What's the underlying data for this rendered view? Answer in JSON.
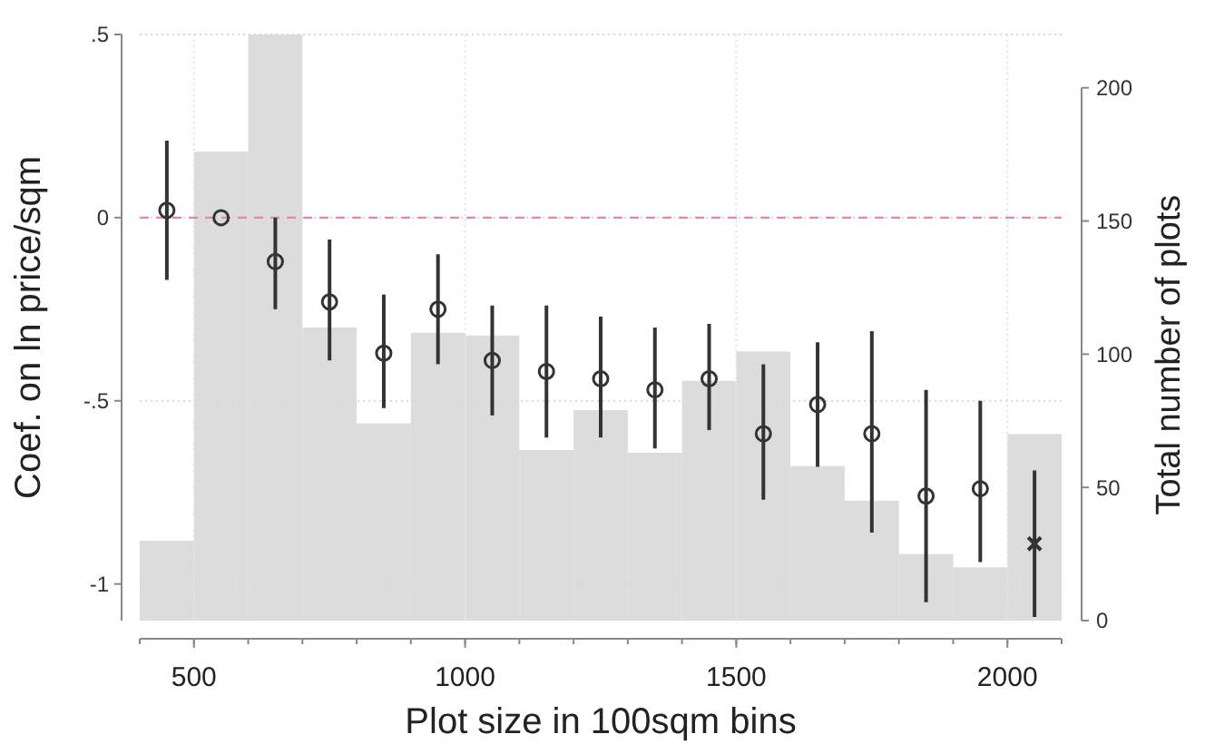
{
  "chart_data": {
    "type": "scatter",
    "xlabel": "Plot size in 100sqm bins",
    "ylabel": "Coef. on ln price/sqm",
    "y2label": "Total number of plots",
    "xlim": [
      400,
      2100
    ],
    "xticks": [
      500,
      1000,
      1500,
      2000
    ],
    "ylim": [
      -1.1,
      0.5
    ],
    "yticks": [
      {
        "value": 0.5,
        "label": ".5"
      },
      0,
      {
        "value": -0.5,
        "label": "-.5"
      },
      -1
    ],
    "y2lim": [
      0,
      220
    ],
    "y2ticks": [
      0,
      50,
      100,
      150,
      200
    ],
    "grid": true,
    "ref_lines": [
      {
        "axis": "y",
        "value": 0,
        "color": "#e08aa8",
        "line_style": "dashed"
      }
    ],
    "series": [
      {
        "type": "histogram",
        "axis": "y2",
        "color": "#dcdcdc",
        "bins": [
          400,
          500,
          600,
          700,
          800,
          900,
          1000,
          1100,
          1200,
          1300,
          1400,
          1500,
          1600,
          1700,
          1800,
          1900,
          2000,
          2100
        ],
        "values": [
          30,
          176,
          220,
          110,
          74,
          108,
          107,
          64,
          79,
          63,
          90,
          101,
          58,
          45,
          25,
          20,
          70
        ]
      },
      {
        "color": "#333333",
        "marker": "circle",
        "x": [
          450,
          550,
          650,
          750,
          850,
          950,
          1050,
          1150,
          1250,
          1350,
          1450,
          1550,
          1650,
          1750,
          1850,
          1950
        ],
        "values": [
          0.02,
          0,
          -0.12,
          -0.23,
          -0.37,
          -0.25,
          -0.39,
          -0.42,
          -0.44,
          -0.47,
          -0.44,
          -0.59,
          -0.51,
          -0.59,
          -0.76,
          -0.74
        ],
        "errors": [
          [
            -0.17,
            0.21
          ],
          null,
          [
            -0.25,
            0
          ],
          [
            -0.39,
            -0.06
          ],
          [
            -0.52,
            -0.21
          ],
          [
            -0.4,
            -0.1
          ],
          [
            -0.54,
            -0.24
          ],
          [
            -0.6,
            -0.24
          ],
          [
            -0.6,
            -0.27
          ],
          [
            -0.63,
            -0.3
          ],
          [
            -0.58,
            -0.29
          ],
          [
            -0.77,
            -0.4
          ],
          [
            -0.68,
            -0.34
          ],
          [
            -0.86,
            -0.31
          ],
          [
            -1.05,
            -0.47
          ],
          [
            -0.94,
            -0.5
          ]
        ]
      },
      {
        "color": "#333333",
        "marker": "cross",
        "x": [
          2050
        ],
        "values": [
          -0.89
        ],
        "errors": [
          [
            -1.09,
            -0.69
          ]
        ]
      }
    ]
  }
}
